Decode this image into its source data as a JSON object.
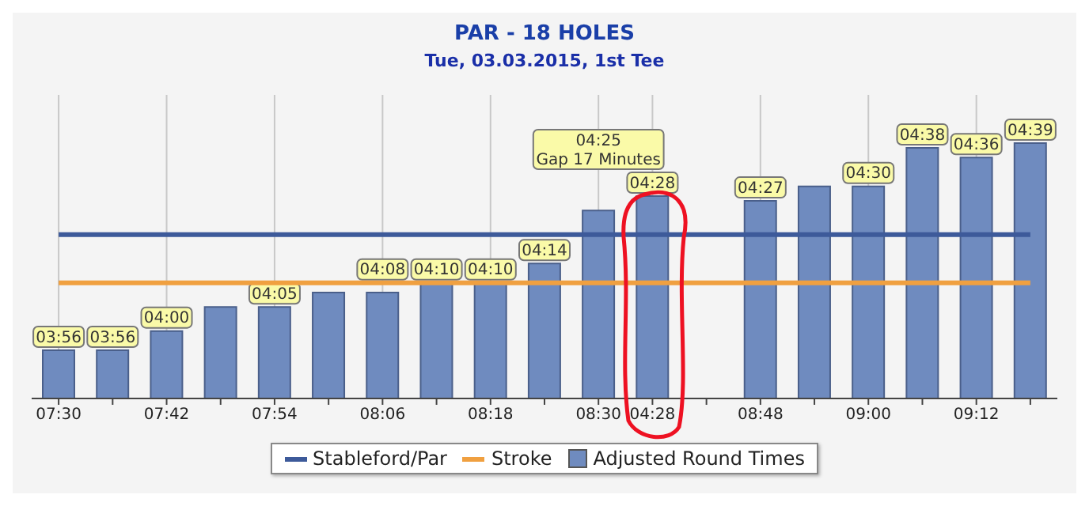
{
  "chart_data": {
    "type": "bar",
    "title": "PAR - 18 HOLES",
    "subtitle": "Tue, 03.03.2015, 1st Tee",
    "categories": [
      "07:30",
      null,
      "07:42",
      null,
      "07:54",
      null,
      "08:06",
      null,
      "08:18",
      null,
      "08:30",
      "04:28",
      null,
      "08:48",
      null,
      "09:00",
      null,
      "09:12",
      null
    ],
    "ylim": [
      226,
      289
    ],
    "tick_labels": "x",
    "grid": "x",
    "legend": "bottom",
    "series": [
      {
        "type": "line",
        "name": "Stableford/Par",
        "color": "#3d5a9a",
        "values": [
          260,
          260,
          260,
          260,
          260,
          260,
          260,
          260,
          260,
          260,
          260,
          260,
          260,
          260,
          260,
          260,
          260,
          260,
          260
        ]
      },
      {
        "type": "line",
        "name": "Stroke",
        "color": "#f0a040",
        "values": [
          250,
          250,
          250,
          250,
          250,
          250,
          250,
          250,
          250,
          250,
          250,
          250,
          250,
          250,
          250,
          250,
          250,
          250,
          250
        ]
      },
      {
        "name": "Adjusted Round Times",
        "color": "#6f8bbf",
        "values": [
          236,
          236,
          240,
          245,
          245,
          248,
          248,
          250,
          250,
          254,
          265,
          268,
          null,
          267,
          270,
          270,
          278,
          276,
          279
        ],
        "value_labels": [
          "03:56",
          "03:56",
          "04:00",
          null,
          "04:05",
          null,
          "04:08",
          "04:10",
          "04:10",
          "04:14",
          "04:25\nGap 17 Minutes",
          "04:28",
          null,
          "04:27",
          null,
          "04:30",
          "04:38",
          "04:36",
          "04:39"
        ]
      }
    ]
  }
}
